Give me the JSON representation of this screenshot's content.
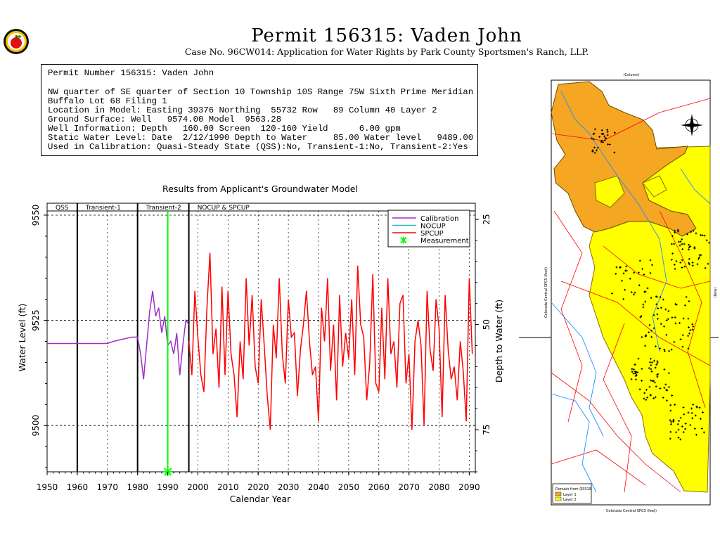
{
  "header": {
    "title": "Permit 156315:  Vaden John",
    "subtitle": "Case No. 96CW014: Application for Water Rights by Park County Sportsmen's Ranch, LLP."
  },
  "info": {
    "line1": "Permit Number 156315: Vaden John",
    "line2": "NW quarter of SE quarter of Section 10 Township 10S Range 75W Sixth Prime Meridian",
    "line3": "Buffalo Lot 68 Filing 1",
    "line4": "Location in Model: Easting 39376 Northing  55732 Row   89 Column 40 Layer 2",
    "line5": "Ground Surface: Well   9574.00 Model  9563.28",
    "line6": "Well Information: Depth   160.00 Screen  120-160 Yield      6.00 gpm",
    "line7": "Static Water Level: Date  2/12/1990 Depth to Water     85.00 Water level   9489.00",
    "line8": "Used in Calibration: Quasi-Steady State (QSS):No, Transient-1:No, Transient-2:Yes"
  },
  "chart_data": {
    "type": "line",
    "title": "Results from Applicant's Groundwater Model",
    "xlabel": "Calendar Year",
    "ylabel": "Water Level (ft)",
    "y2label": "Depth to Water (ft)",
    "xlim": [
      1950,
      2092
    ],
    "ylim": [
      9489,
      9551
    ],
    "xticks": [
      1950,
      1960,
      1970,
      1980,
      1990,
      2000,
      2010,
      2020,
      2030,
      2040,
      2050,
      2060,
      2070,
      2080,
      2090
    ],
    "yticks": [
      9500,
      9525,
      9550
    ],
    "y2ticks": [
      25,
      50,
      75
    ],
    "ground_surface": 9574.0,
    "periods": [
      {
        "label": "QSS",
        "start": 1950,
        "end": 1960
      },
      {
        "label": "Transient-1",
        "start": 1960,
        "end": 1980
      },
      {
        "label": "Transient-2",
        "start": 1980,
        "end": 1997
      },
      {
        "label": "NOCUP  &  SPCUP",
        "start": 1997,
        "end": 2092
      }
    ],
    "period_boundaries": [
      1960,
      1980,
      1997
    ],
    "legend_position": "top-right",
    "series": [
      {
        "name": "Calibration",
        "color": "#9b30c8",
        "x": [
          1950,
          1970,
          1972,
          1975,
          1978,
          1980,
          1981,
          1982,
          1983,
          1984,
          1985,
          1986,
          1987,
          1988,
          1989,
          1990,
          1991,
          1992,
          1993,
          1994,
          1995,
          1996,
          1997
        ],
        "y": [
          9519.5,
          9519.5,
          9520,
          9520.5,
          9521,
          9521,
          9517,
          9511,
          9519,
          9527,
          9532,
          9526,
          9528,
          9522,
          9526,
          9519,
          9520,
          9517,
          9522,
          9512,
          9519,
          9525,
          9524
        ]
      },
      {
        "name": "NOCUP",
        "color": "#38b0b0",
        "x": [],
        "y": []
      },
      {
        "name": "SPCUP",
        "color": "#ff0000",
        "x": [
          1997,
          1998,
          1999,
          2000,
          2001,
          2002,
          2003,
          2004,
          2005,
          2006,
          2007,
          2008,
          2009,
          2010,
          2011,
          2012,
          2013,
          2014,
          2015,
          2016,
          2017,
          2018,
          2019,
          2020,
          2021,
          2022,
          2023,
          2024,
          2025,
          2026,
          2027,
          2028,
          2029,
          2030,
          2031,
          2032,
          2033,
          2034,
          2035,
          2036,
          2037,
          2038,
          2039,
          2040,
          2041,
          2042,
          2043,
          2044,
          2045,
          2046,
          2047,
          2048,
          2049,
          2050,
          2051,
          2052,
          2053,
          2054,
          2055,
          2056,
          2057,
          2058,
          2059,
          2060,
          2061,
          2062,
          2063,
          2064,
          2065,
          2066,
          2067,
          2068,
          2069,
          2070,
          2071,
          2072,
          2073,
          2074,
          2075,
          2076,
          2077,
          2078,
          2079,
          2080,
          2081,
          2082,
          2083,
          2084,
          2085,
          2086,
          2087,
          2088,
          2089,
          2090,
          2091
        ],
        "y": [
          9520,
          9512,
          9532,
          9521,
          9512,
          9508,
          9528,
          9541,
          9517,
          9523,
          9509,
          9533,
          9512,
          9532,
          9517,
          9512,
          9502,
          9520,
          9511,
          9535,
          9519,
          9531,
          9514,
          9510,
          9530,
          9519,
          9507,
          9499,
          9524,
          9516,
          9535,
          9517,
          9510,
          9530,
          9521,
          9522,
          9507,
          9518,
          9524,
          9532,
          9520,
          9512,
          9514,
          9501,
          9528,
          9520,
          9535,
          9513,
          9524,
          9506,
          9531,
          9514,
          9522,
          9516,
          9530,
          9512,
          9538,
          9524,
          9521,
          9506,
          9515,
          9536,
          9510,
          9508,
          9528,
          9511,
          9535,
          9517,
          9520,
          9509,
          9529,
          9531,
          9510,
          9517,
          9499,
          9520,
          9525,
          9519,
          9500,
          9532,
          9518,
          9513,
          9530,
          9523,
          9502,
          9531,
          9518,
          9511,
          9514,
          9506,
          9520,
          9513,
          9501,
          9535,
          9517
        ]
      },
      {
        "name": "Measurement",
        "color": "#00ff00",
        "x": [
          1990
        ],
        "y": [
          9489
        ]
      }
    ]
  },
  "map": {
    "top_label": "(Column)",
    "legend_title": "Domain from QSS19",
    "legend_layer1": "Layer 1",
    "legend_layer2": "Layer 2",
    "y_axis_label": "Colorado Central SPCS (feet)",
    "x_axis_label": "Colorado Central SPCS (feet)",
    "right_label": "(Row)",
    "colors": {
      "layer1": "#f5a623",
      "layer2": "#ffff00",
      "rivers": "#1e90ff",
      "roads": "#ff0000"
    }
  }
}
